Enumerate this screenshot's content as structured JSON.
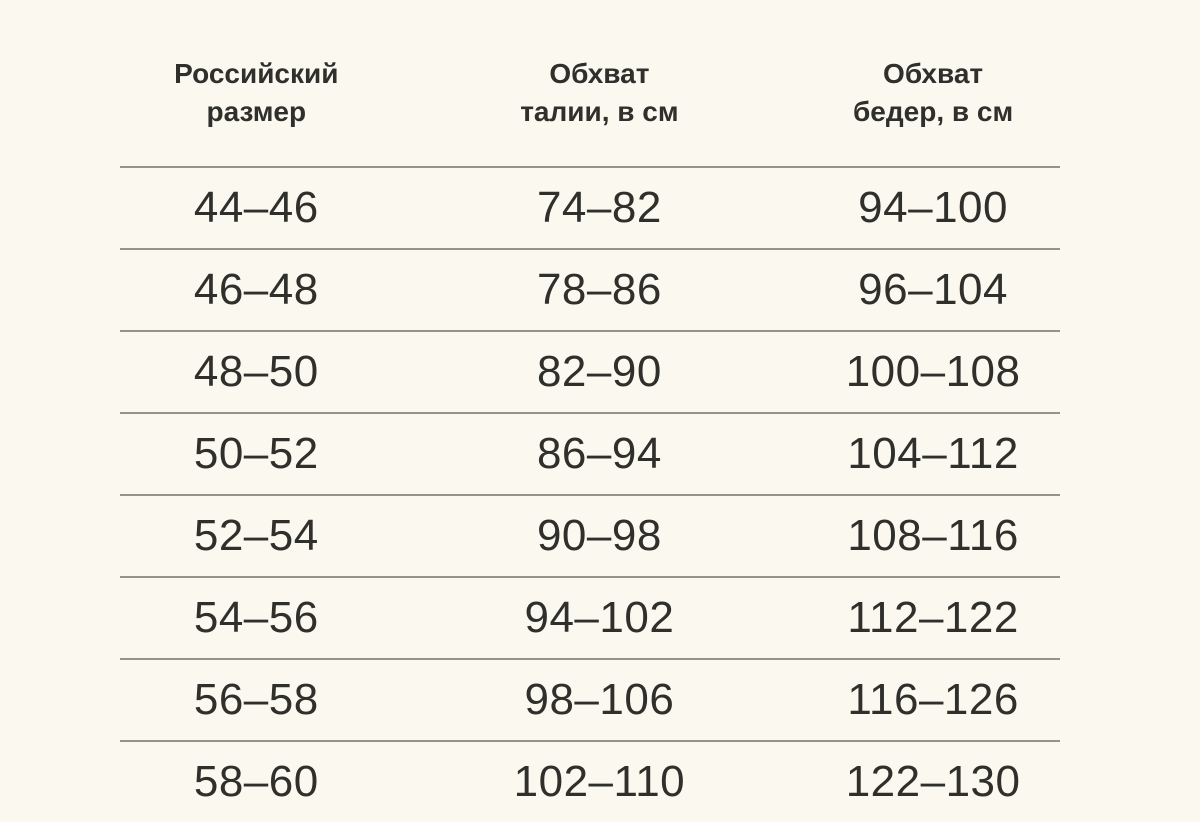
{
  "page": {
    "background_color": "#fbf9ef",
    "text_color": "#2f2f2c",
    "divider_color": "#94928a"
  },
  "table": {
    "headers": [
      {
        "line1": "Российский",
        "line2": "размер"
      },
      {
        "line1": "Обхват",
        "line2": "талии, в см"
      },
      {
        "line1": "Обхват",
        "line2": "бедер, в см"
      }
    ],
    "rows": [
      {
        "size": "44–46",
        "waist": "74–82",
        "hips": "94–100"
      },
      {
        "size": "46–48",
        "waist": "78–86",
        "hips": "96–104"
      },
      {
        "size": "48–50",
        "waist": "82–90",
        "hips": "100–108"
      },
      {
        "size": "50–52",
        "waist": "86–94",
        "hips": "104–112"
      },
      {
        "size": "52–54",
        "waist": "90–98",
        "hips": "108–116"
      },
      {
        "size": "54–56",
        "waist": "94–102",
        "hips": "112–122"
      },
      {
        "size": "56–58",
        "waist": "98–106",
        "hips": "116–126"
      },
      {
        "size": "58–60",
        "waist": "102–110",
        "hips": "122–130"
      }
    ]
  },
  "chart_data": {
    "type": "table",
    "title": "",
    "columns": [
      "Российский размер",
      "Обхват талии, в см",
      "Обхват бедер, в см"
    ],
    "rows": [
      [
        "44–46",
        "74–82",
        "94–100"
      ],
      [
        "46–48",
        "78–86",
        "96–104"
      ],
      [
        "48–50",
        "82–90",
        "100–108"
      ],
      [
        "50–52",
        "86–94",
        "104–112"
      ],
      [
        "52–54",
        "90–98",
        "108–116"
      ],
      [
        "54–56",
        "94–102",
        "112–122"
      ],
      [
        "56–58",
        "98–106",
        "116–126"
      ],
      [
        "58–60",
        "102–110",
        "122–130"
      ]
    ]
  }
}
